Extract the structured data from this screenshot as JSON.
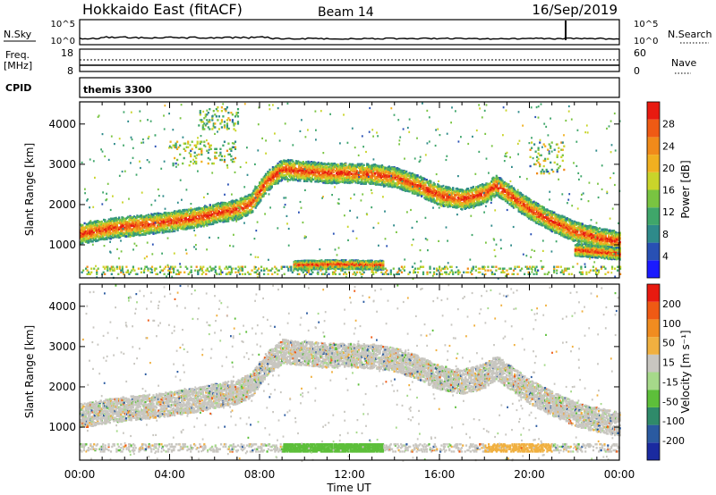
{
  "header": {
    "title": "Hokkaido East (fitACF)",
    "beam": "Beam 14",
    "date": "16/Sep/2019"
  },
  "top_panels": {
    "nsky_label": "N.Sky",
    "nsky_ticks": [
      "10^5",
      "10^0"
    ],
    "nsearch_ticks": [
      "10^5",
      "10^0"
    ],
    "nsearch_label": "N.Search",
    "freq_label": "Freq.",
    "freq_unit": "[MHz]",
    "freq_ticks": [
      "18",
      "8"
    ],
    "nave_ticks": [
      "60",
      "0"
    ],
    "nave_label": "Nave",
    "cpid_label": "CPID",
    "cpid_value": "themis 3300"
  },
  "chart_data": [
    {
      "type": "heatmap",
      "name": "power",
      "ylabel": "Slant Range [km]",
      "ylim": [
        180,
        4550
      ],
      "xlim": [
        0,
        24
      ],
      "y_ticks": [
        1000,
        2000,
        3000,
        4000
      ],
      "colorbar": {
        "label": "Power [dB]",
        "ticks": [
          "28",
          "24",
          "20",
          "16",
          "12",
          "8",
          "4"
        ],
        "colors": [
          "#1a1aff",
          "#2850b4",
          "#2e8a8a",
          "#3fa66a",
          "#79c441",
          "#c9d42a",
          "#f0b020",
          "#f08a1a",
          "#ef5a14",
          "#e81a10"
        ]
      },
      "echo_bands": [
        {
          "t": [
            0,
            1,
            2,
            3,
            4,
            5,
            6,
            7,
            7.6,
            8.3,
            9,
            10,
            11,
            12,
            13,
            14,
            15,
            16,
            17,
            18,
            18.5,
            19,
            20,
            21,
            22,
            23,
            24
          ],
          "r": [
            1300,
            1400,
            1480,
            1530,
            1600,
            1680,
            1800,
            1900,
            2050,
            2600,
            2900,
            2850,
            2800,
            2800,
            2780,
            2700,
            2500,
            2250,
            2150,
            2300,
            2500,
            2300,
            1900,
            1600,
            1350,
            1200,
            1100
          ],
          "w": 250
        },
        {
          "t": [
            22,
            23,
            24
          ],
          "r": [
            900,
            850,
            800
          ],
          "w": 150
        },
        {
          "t": [
            9.5,
            10.5,
            11.5,
            12.5,
            13.5
          ],
          "r": [
            520,
            530,
            540,
            530,
            520
          ],
          "w": 110
        }
      ],
      "patches": [
        {
          "t0": 4.0,
          "t1": 7.0,
          "r0": 3000,
          "r1": 3600
        },
        {
          "t0": 5.2,
          "t1": 7.0,
          "r0": 3900,
          "r1": 4450
        },
        {
          "t0": 20.0,
          "t1": 21.5,
          "r0": 2800,
          "r1": 3600
        },
        {
          "t0": 0.0,
          "t1": 24.0,
          "r0": 300,
          "r1": 500
        }
      ]
    },
    {
      "type": "heatmap",
      "name": "velocity",
      "ylabel": "Slant Range [km]",
      "xlabel": "Time UT",
      "ylim": [
        180,
        4550
      ],
      "xlim": [
        0,
        24
      ],
      "y_ticks": [
        1000,
        2000,
        3000,
        4000
      ],
      "x_ticks": [
        "00:00",
        "04:00",
        "08:00",
        "12:00",
        "16:00",
        "20:00",
        "00:00"
      ],
      "colorbar": {
        "label": "Velocity [m s⁻¹]",
        "ticks": [
          "200",
          "100",
          "50",
          "15",
          "-15",
          "-50",
          "-100",
          "-200"
        ],
        "colors": [
          "#1a2aa0",
          "#2a5aa0",
          "#2f8a6a",
          "#5dbf3a",
          "#a6d98a",
          "#c8c6c0",
          "#f0b040",
          "#f08c20",
          "#ef5a14",
          "#e81a10"
        ]
      },
      "echo_bands": [
        {
          "t": [
            0,
            1,
            2,
            3,
            4,
            5,
            6,
            7,
            7.6,
            8.3,
            9,
            10,
            11,
            12,
            13,
            14,
            15,
            16,
            17,
            18,
            18.5,
            19,
            20,
            21,
            22,
            23,
            24
          ],
          "r": [
            1300,
            1400,
            1480,
            1530,
            1600,
            1680,
            1800,
            1900,
            2050,
            2600,
            2900,
            2850,
            2800,
            2800,
            2780,
            2700,
            2500,
            2250,
            2150,
            2300,
            2500,
            2300,
            1900,
            1600,
            1350,
            1200,
            1100
          ],
          "w": 300
        }
      ],
      "ground_band": {
        "r0": 420,
        "r1": 620,
        "green_t": [
          9.0,
          13.5
        ],
        "orange_t": [
          18.0,
          21.0
        ]
      }
    }
  ]
}
